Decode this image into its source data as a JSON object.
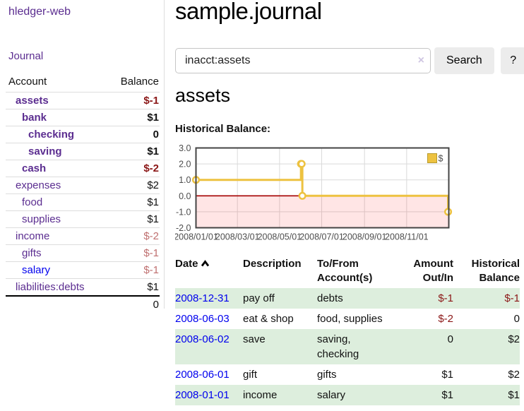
{
  "app": {
    "brand": "hledger-web"
  },
  "colors": {
    "accent_purple": "#5b2d90",
    "link_blue": "#0000ee",
    "negative_dark": "#8b1717",
    "negative_muted": "#bf6f6f",
    "row_green": "#ddeedd",
    "chart_line": "#edc240",
    "zero_line_red": "#a40000",
    "negative_region_pink": "rgba(255,0,0,0.10)"
  },
  "sidebar": {
    "nav": [
      {
        "label": "Journal"
      }
    ],
    "accounts_table": {
      "headers": {
        "account": "Account",
        "balance": "Balance"
      },
      "rows": [
        {
          "name": "assets",
          "level": 0,
          "selected": true,
          "link_color": "purple",
          "balance": "$-1",
          "balance_class": "neg b"
        },
        {
          "name": "bank",
          "level": 1,
          "selected": true,
          "link_color": "purple",
          "balance": "$1",
          "balance_class": "b"
        },
        {
          "name": "checking",
          "level": 2,
          "selected": true,
          "link_color": "purple",
          "balance": "0",
          "balance_class": "b"
        },
        {
          "name": "saving",
          "level": 2,
          "selected": true,
          "link_color": "purple",
          "balance": "$1",
          "balance_class": "b"
        },
        {
          "name": "cash",
          "level": 1,
          "selected": true,
          "link_color": "purple",
          "balance": "$-2",
          "balance_class": "neg b"
        },
        {
          "name": "expenses",
          "level": 0,
          "selected": false,
          "link_color": "purple",
          "balance": "$2",
          "balance_class": ""
        },
        {
          "name": "food",
          "level": 1,
          "selected": false,
          "link_color": "purple",
          "balance": "$1",
          "balance_class": ""
        },
        {
          "name": "supplies",
          "level": 1,
          "selected": false,
          "link_color": "purple",
          "balance": "$1",
          "balance_class": ""
        },
        {
          "name": "income",
          "level": 0,
          "selected": false,
          "link_color": "purple",
          "balance": "$-2",
          "balance_class": "negl"
        },
        {
          "name": "gifts",
          "level": 1,
          "selected": false,
          "link_color": "purple",
          "balance": "$-1",
          "balance_class": "negl"
        },
        {
          "name": "salary",
          "level": 1,
          "selected": false,
          "link_color": "blue",
          "balance": "$-1",
          "balance_class": "negl"
        },
        {
          "name": "liabilities:debts",
          "level": 0,
          "selected": false,
          "link_color": "purple",
          "balance": "$1",
          "balance_class": ""
        }
      ],
      "total": "0"
    }
  },
  "header": {
    "title": "sample.journal"
  },
  "search": {
    "value": "inacct:assets",
    "clear_icon": "×",
    "button": "Search",
    "help_button": "?"
  },
  "account_page": {
    "heading": "assets",
    "chart_label": "Historical Balance:"
  },
  "chart_data": {
    "type": "line",
    "title": "Historical Balance",
    "step": true,
    "series": [
      {
        "name": "$",
        "color": "#edc240",
        "points": [
          [
            "2008-01-01",
            1
          ],
          [
            "2008-06-01",
            2
          ],
          [
            "2008-06-02",
            2
          ],
          [
            "2008-06-03",
            0
          ],
          [
            "2008-12-31",
            -1
          ]
        ]
      }
    ],
    "x_range": [
      "2008/01/01",
      "2009/01/01"
    ],
    "x_ticks": [
      "2008/01/01",
      "2008/03/01",
      "2008/05/01",
      "2008/07/01",
      "2008/09/01",
      "2008/11/01"
    ],
    "y_ticks": [
      "3.0",
      "2.0",
      "1.0",
      "0.0",
      "-1.0",
      "-2.0"
    ],
    "ylim": [
      -2,
      3
    ],
    "grid": true,
    "legend_position": "top-right",
    "legend_label": "$",
    "negative_region_shaded": true
  },
  "register_table": {
    "headers": {
      "date": "Date",
      "description": "Description",
      "accounts": "To/From Account(s)",
      "amount": "Amount Out/In",
      "balance": "Historical Balance"
    },
    "sort": {
      "column": "date",
      "direction": "ascending"
    },
    "rows": [
      {
        "date": "2008-12-31",
        "description": "pay off",
        "accounts": "debts",
        "amount": "$-1",
        "amount_negative": true,
        "balance": "$-1",
        "balance_negative": true
      },
      {
        "date": "2008-06-03",
        "description": "eat & shop",
        "accounts": "food, supplies",
        "amount": "$-2",
        "amount_negative": true,
        "balance": "0",
        "balance_negative": false
      },
      {
        "date": "2008-06-02",
        "description": "save",
        "accounts": "saving, checking",
        "amount": "0",
        "amount_negative": false,
        "balance": "$2",
        "balance_negative": false
      },
      {
        "date": "2008-06-01",
        "description": "gift",
        "accounts": "gifts",
        "amount": "$1",
        "amount_negative": false,
        "balance": "$2",
        "balance_negative": false
      },
      {
        "date": "2008-01-01",
        "description": "income",
        "accounts": "salary",
        "amount": "$1",
        "amount_negative": false,
        "balance": "$1",
        "balance_negative": false
      }
    ]
  }
}
